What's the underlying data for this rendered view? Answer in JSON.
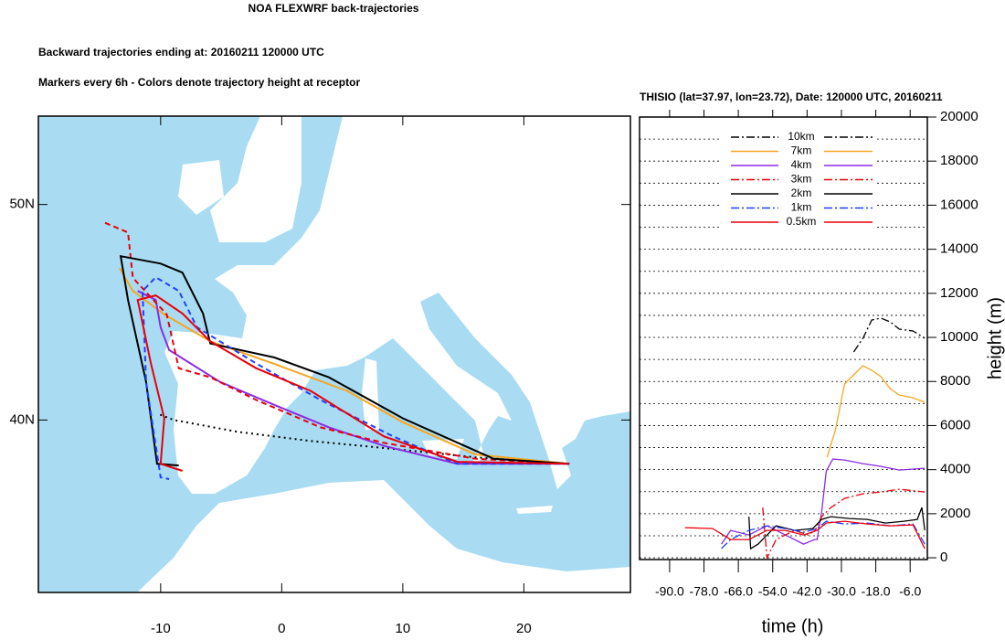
{
  "title": "NOA FLEXWRF back-trajectories",
  "subtitle": "Backward trajectories ending at: 20160211  120000 UTC",
  "note": "Markers every 6h - Colors denote trajectory height at receptor",
  "chart_data": [
    {
      "type": "trajectory_map",
      "xlim": [
        -20.1,
        28.8
      ],
      "ylim": [
        32.0,
        54.1
      ],
      "xticks": [
        -10,
        0,
        10,
        20
      ],
      "yticks": [
        {
          "value": 40,
          "label": "40N"
        },
        {
          "value": 50,
          "label": "50N"
        }
      ],
      "series": [
        {
          "color": "#000000",
          "style": "dotted",
          "x": [
            23.77,
            16.0,
            8.45,
            2.4,
            -3.6,
            -8.9,
            -10.3
          ],
          "y": [
            37.97,
            38.27,
            38.7,
            39.03,
            39.45,
            40.0,
            40.3
          ]
        },
        {
          "color": "#f5a623",
          "style": "solid",
          "x": [
            23.72,
            16.0,
            10.0,
            5.4,
            -0.6,
            -5.9,
            -9.7,
            -12.3,
            -13.4
          ],
          "y": [
            37.97,
            38.4,
            39.9,
            41.35,
            42.6,
            43.65,
            44.9,
            45.99,
            47.05
          ]
        },
        {
          "color": "#8a2be2",
          "style": "solid",
          "x": [
            23.72,
            14.5,
            8.45,
            3.9,
            -0.6,
            -5.1,
            -9.3,
            -10.0,
            -10.4,
            -11.9
          ],
          "y": [
            37.97,
            37.97,
            38.8,
            39.66,
            40.7,
            41.77,
            43.25,
            44.3,
            45.57,
            45.99
          ]
        },
        {
          "color": "#e8000b",
          "style": "dashed",
          "x": [
            23.72,
            16.0,
            8.45,
            3.2,
            -2.1,
            -5.9,
            -8.5,
            -9.5,
            -12.3,
            -12.7,
            -14.8
          ],
          "y": [
            37.97,
            38.2,
            38.94,
            39.66,
            40.93,
            41.98,
            42.4,
            44.9,
            46.6,
            48.7,
            49.2
          ]
        },
        {
          "color": "#000000",
          "style": "solid",
          "x": [
            23.72,
            17.5,
            10.0,
            3.9,
            -0.6,
            -5.9,
            -6.5,
            -8.2,
            -10.0,
            -13.3,
            -12.7,
            -11.2,
            -10.3,
            -8.5
          ],
          "y": [
            37.97,
            38.2,
            40.08,
            41.98,
            42.9,
            43.55,
            44.94,
            46.84,
            47.26,
            47.6,
            45.57,
            41.77,
            37.97,
            37.89
          ]
        },
        {
          "color": "#1f3fff",
          "style": "dashed",
          "x": [
            23.72,
            14.5,
            9.2,
            3.2,
            -2.1,
            -7.0,
            -8.5,
            -10.4,
            -11.5,
            -11.2,
            -10.0,
            -9.3
          ],
          "y": [
            37.97,
            37.97,
            39.24,
            40.93,
            42.62,
            44.3,
            45.99,
            46.62,
            45.99,
            41.77,
            37.34,
            37.26
          ]
        },
        {
          "color": "#e8000b",
          "style": "solid",
          "x": [
            23.72,
            14.5,
            8.45,
            2.4,
            -2.1,
            -5.9,
            -8.2,
            -10.4,
            -11.9,
            -10.8,
            -9.7,
            -10.0,
            -8.2
          ],
          "y": [
            37.97,
            38.06,
            39.24,
            41.35,
            42.4,
            43.65,
            44.94,
            45.78,
            45.57,
            42.62,
            40.08,
            37.97,
            37.64
          ]
        }
      ]
    },
    {
      "type": "line",
      "title": "THISIO (lat=37.97,  lon=23.72), Date: 120000 UTC, 20160211",
      "x_label": "time (h)",
      "y_label": "height (m)",
      "xlim": [
        -100.5,
        0
      ],
      "ylim": [
        -80,
        20000
      ],
      "xticks": [
        {
          "value": -90,
          "label": "-90.0"
        },
        {
          "value": -78,
          "label": "-78.0"
        },
        {
          "value": -66,
          "label": "-66.0"
        },
        {
          "value": -54,
          "label": "-54.0"
        },
        {
          "value": -42,
          "label": "-42.0"
        },
        {
          "value": -30,
          "label": "-30.0"
        },
        {
          "value": -18,
          "label": "-18.0"
        },
        {
          "value": -6,
          "label": "-6.0"
        }
      ],
      "yticks": [
        0,
        2000,
        4000,
        6000,
        8000,
        10000,
        12000,
        14000,
        16000,
        18000,
        20000
      ],
      "minor_grid": [
        1000,
        3000,
        5000,
        7000,
        9000,
        11000,
        13000,
        15000,
        17000,
        19000
      ],
      "series": [
        {
          "name": "10km",
          "color": "#000000",
          "style": "dashdot",
          "x": [
            -25.7,
            -22.5,
            -19.4,
            -16.2,
            -13.0,
            -9.8,
            -5.0,
            -0.9
          ],
          "values": [
            9336,
            9958,
            10788,
            10871,
            10705,
            10373,
            10290,
            9958
          ]
        },
        {
          "name": "7km",
          "color": "#f5a623",
          "style": "solid",
          "x": [
            -35.0,
            -32.1,
            -28.9,
            -25.7,
            -22.5,
            -19.4,
            -16.2,
            -13.0,
            -9.8,
            -5.0,
            -0.9
          ],
          "values": [
            4564,
            5809,
            7884,
            8299,
            8714,
            8506,
            8216,
            7676,
            7386,
            7261,
            7054
          ]
        },
        {
          "name": "4km",
          "color": "#8a2be2",
          "style": "solid",
          "x": [
            -71.9,
            -68.7,
            -62.3,
            -56.0,
            -49.6,
            -43.2,
            -39.4,
            -38.5,
            -36.9,
            -35.3,
            -33.0,
            -28.9,
            -22.5,
            -16.2,
            -9.8,
            -0.9
          ],
          "values": [
            622,
            1245,
            1037,
            1452,
            1037,
            622,
            830,
            830,
            2075,
            3942,
            4481,
            4440,
            4274,
            4149,
            3983,
            4066
          ]
        },
        {
          "name": "3km",
          "color": "#e8000b",
          "style": "dashdot",
          "x": [
            -57.5,
            -56.0,
            -52.8,
            -46.4,
            -41.6,
            -39.1,
            -36.9,
            -33.7,
            -28.9,
            -22.5,
            -16.2,
            -9.8,
            -0.9
          ],
          "values": [
            2282,
            0,
            830,
            1245,
            1037,
            1245,
            1867,
            2282,
            2697,
            2905,
            2988,
            3112,
            2988
          ]
        },
        {
          "name": "2km",
          "color": "#000000",
          "style": "solid",
          "x": [
            -62.3,
            -61.7,
            -59.1,
            -52.8,
            -46.4,
            -40.0,
            -36.9,
            -33.7,
            -27.3,
            -21.0,
            -14.6,
            -8.2,
            -3.5,
            -1.9,
            -0.9
          ],
          "values": [
            1867,
            415,
            622,
            1452,
            1245,
            1328,
            1743,
            1867,
            1784,
            1743,
            1577,
            1660,
            1743,
            2282,
            1245
          ]
        },
        {
          "name": "1km",
          "color": "#1f3fff",
          "style": "dashdot",
          "x": [
            -71.9,
            -68.7,
            -62.3,
            -56.0,
            -49.6,
            -43.2,
            -38.5,
            -35.3,
            -28.9,
            -21.0,
            -13.0,
            -5.0,
            -0.9
          ],
          "values": [
            415,
            830,
            1245,
            1452,
            1328,
            1162,
            1328,
            1660,
            1535,
            1577,
            1452,
            1535,
            622
          ]
        },
        {
          "name": "0.5km",
          "color": "#e8000b",
          "style": "solid",
          "x": [
            -84.6,
            -75.0,
            -68.7,
            -62.3,
            -56.0,
            -49.6,
            -43.2,
            -38.5,
            -35.3,
            -28.9,
            -21.0,
            -13.0,
            -5.0,
            -0.9
          ],
          "values": [
            1369,
            1328,
            830,
            830,
            1245,
            1245,
            1037,
            1245,
            1577,
            1660,
            1535,
            1452,
            1494,
            415
          ]
        }
      ]
    }
  ]
}
